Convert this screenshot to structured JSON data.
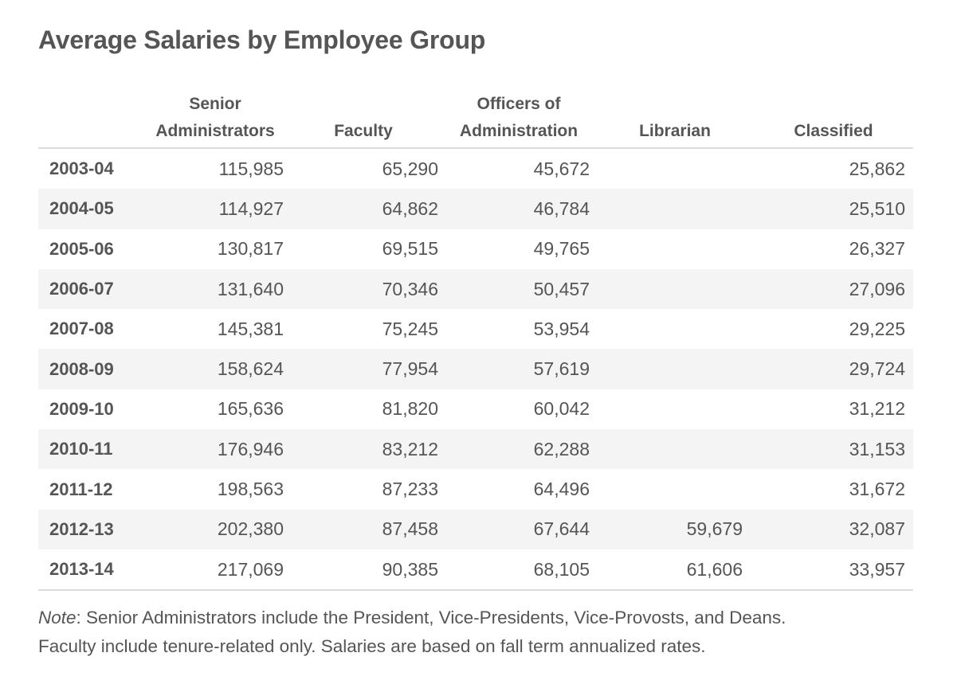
{
  "title": "Average Salaries by Employee Group",
  "chart_data": {
    "type": "table",
    "title": "Average Salaries by Employee Group",
    "columns": [
      {
        "line1": "",
        "line2": ""
      },
      {
        "line1": "Senior",
        "line2": "Administrators"
      },
      {
        "line1": "",
        "line2": "Faculty"
      },
      {
        "line1": "Officers of",
        "line2": "Administration"
      },
      {
        "line1": "",
        "line2": "Librarian"
      },
      {
        "line1": "",
        "line2": "Classified"
      }
    ],
    "rows": [
      {
        "year": "2003-04",
        "senior_administrators": "115,985",
        "faculty": "65,290",
        "officers_of_administration": "45,672",
        "librarian": "",
        "classified": "25,862"
      },
      {
        "year": "2004-05",
        "senior_administrators": "114,927",
        "faculty": "64,862",
        "officers_of_administration": "46,784",
        "librarian": "",
        "classified": "25,510"
      },
      {
        "year": "2005-06",
        "senior_administrators": "130,817",
        "faculty": "69,515",
        "officers_of_administration": "49,765",
        "librarian": "",
        "classified": "26,327"
      },
      {
        "year": "2006-07",
        "senior_administrators": "131,640",
        "faculty": "70,346",
        "officers_of_administration": "50,457",
        "librarian": "",
        "classified": "27,096"
      },
      {
        "year": "2007-08",
        "senior_administrators": "145,381",
        "faculty": "75,245",
        "officers_of_administration": "53,954",
        "librarian": "",
        "classified": "29,225"
      },
      {
        "year": "2008-09",
        "senior_administrators": "158,624",
        "faculty": "77,954",
        "officers_of_administration": "57,619",
        "librarian": "",
        "classified": "29,724"
      },
      {
        "year": "2009-10",
        "senior_administrators": "165,636",
        "faculty": "81,820",
        "officers_of_administration": "60,042",
        "librarian": "",
        "classified": "31,212"
      },
      {
        "year": "2010-11",
        "senior_administrators": "176,946",
        "faculty": "83,212",
        "officers_of_administration": "62,288",
        "librarian": "",
        "classified": "31,153"
      },
      {
        "year": "2011-12",
        "senior_administrators": "198,563",
        "faculty": "87,233",
        "officers_of_administration": "64,496",
        "librarian": "",
        "classified": "31,672"
      },
      {
        "year": "2012-13",
        "senior_administrators": "202,380",
        "faculty": "87,458",
        "officers_of_administration": "67,644",
        "librarian": "59,679",
        "classified": "32,087"
      },
      {
        "year": "2013-14",
        "senior_administrators": "217,069",
        "faculty": "90,385",
        "officers_of_administration": "68,105",
        "librarian": "61,606",
        "classified": "33,957"
      }
    ]
  },
  "note": {
    "label": "Note",
    "line1": ": Senior Administrators include the President, Vice-Presidents, Vice-Provosts, and Deans.",
    "line2": "Faculty include tenure-related only. Salaries are based on fall term annualized rates."
  }
}
